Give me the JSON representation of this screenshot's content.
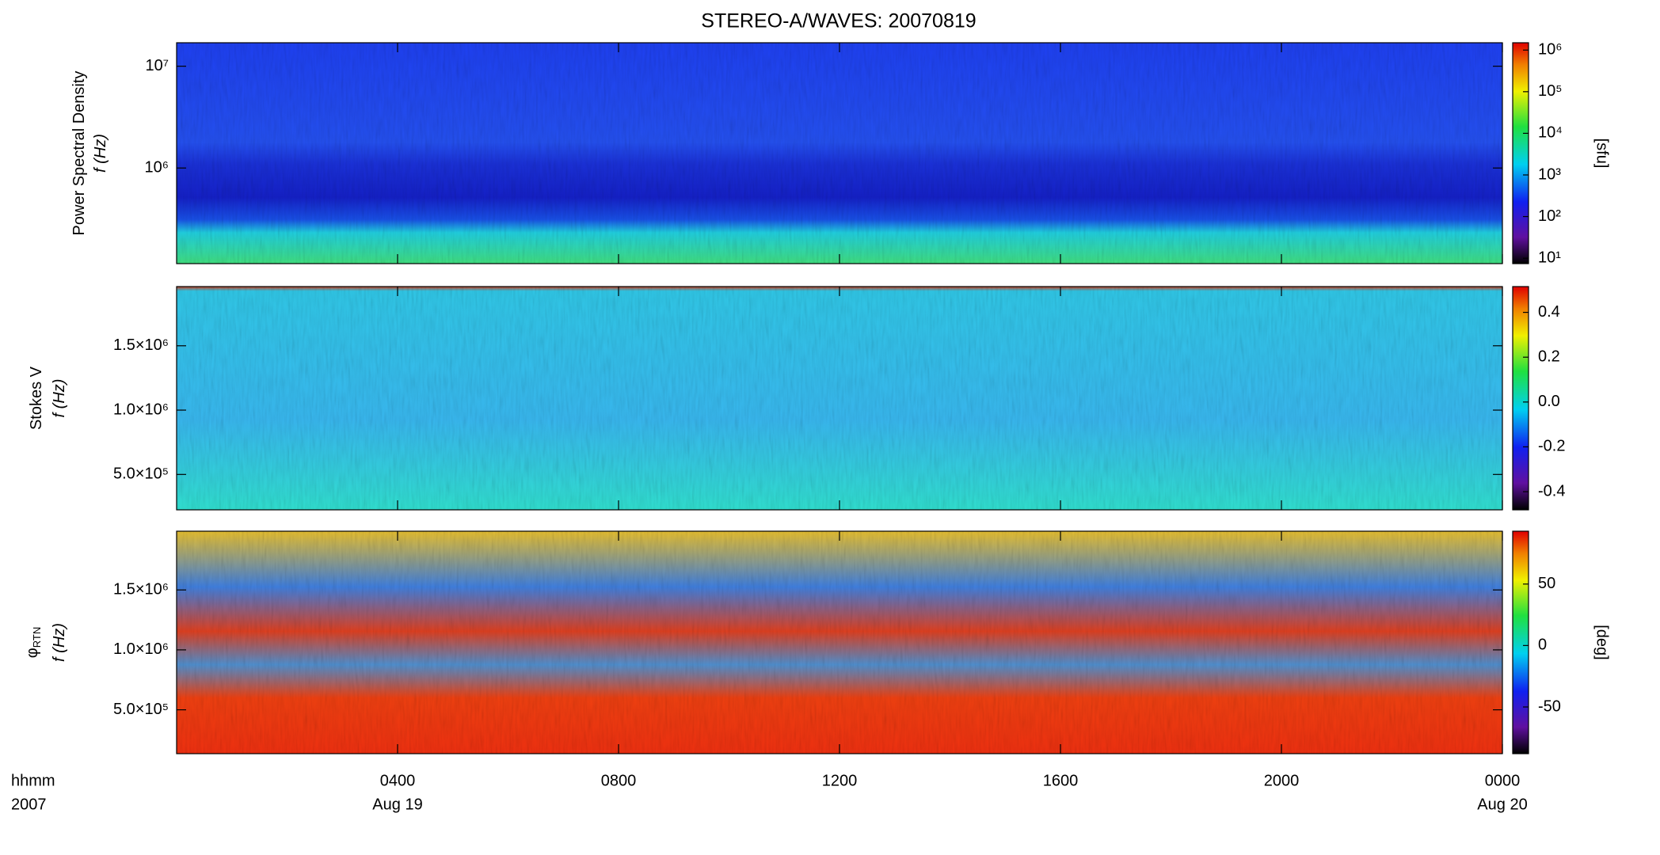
{
  "chart_data": [
    {
      "type": "spectrogram",
      "title": "STEREO-A/WAVES: 20070819",
      "ylabel": [
        "Power Spectral Density",
        "f (Hz)"
      ],
      "ylog": true,
      "ylim": [
        115000,
        17000000
      ],
      "yticks": [
        {
          "value": 1000000,
          "label": "10⁶"
        },
        {
          "value": 10000000,
          "label": "10⁷"
        }
      ],
      "xlim": [
        0,
        24
      ],
      "colorbar": {
        "label": "[sfu]",
        "log": true,
        "lim": [
          7.4,
          1500000
        ],
        "ticks": [
          {
            "value": 10,
            "label": "10¹"
          },
          {
            "value": 100,
            "label": "10²"
          },
          {
            "value": 1000,
            "label": "10³"
          },
          {
            "value": 10000,
            "label": "10⁴"
          },
          {
            "value": 100000,
            "label": "10⁵"
          },
          {
            "value": 1000000,
            "label": "10⁶"
          }
        ]
      }
    },
    {
      "type": "spectrogram",
      "ylabel": [
        "Stokes V",
        "f (Hz)"
      ],
      "ylog": false,
      "ylim": [
        225000,
        1960000
      ],
      "yticks": [
        {
          "value": 500000,
          "label": "5.0×10⁵"
        },
        {
          "value": 1000000,
          "label": "1.0×10⁶"
        },
        {
          "value": 1500000,
          "label": "1.5×10⁶"
        }
      ],
      "xlim": [
        0,
        24
      ],
      "colorbar": {
        "label": "",
        "log": false,
        "lim": [
          -0.481,
          0.515
        ],
        "ticks": [
          -0.4,
          -0.2,
          {
            "value": 0,
            "label": "0.0"
          },
          0.2,
          0.4
        ]
      }
    },
    {
      "type": "spectrogram",
      "ylabel": [
        "φ",
        "f (Hz)"
      ],
      "ylabel_sub": "RTN",
      "ylog": false,
      "ylim": [
        134000,
        1990000
      ],
      "yticks": [
        {
          "value": 500000,
          "label": "5.0×10⁵"
        },
        {
          "value": 1000000,
          "label": "1.0×10⁶"
        },
        {
          "value": 1500000,
          "label": "1.5×10⁶"
        }
      ],
      "xlim": [
        0,
        24
      ],
      "xticks": [
        {
          "value": 4,
          "label": "0400"
        },
        {
          "value": 8,
          "label": "0800"
        },
        {
          "value": 12,
          "label": "1200"
        },
        {
          "value": 16,
          "label": "1600"
        },
        {
          "value": 20,
          "label": "2000"
        },
        {
          "value": 24,
          "label": "0000"
        }
      ],
      "xdates": [
        {
          "value": 4,
          "label": "Aug 19"
        },
        {
          "value": 24,
          "label": "Aug 20"
        }
      ],
      "xlabel": [
        "hhmm",
        "2007"
      ],
      "colorbar": {
        "label": "[deg]",
        "log": false,
        "lim": [
          -88,
          93
        ],
        "ticks": [
          -50,
          0,
          50
        ]
      }
    }
  ]
}
